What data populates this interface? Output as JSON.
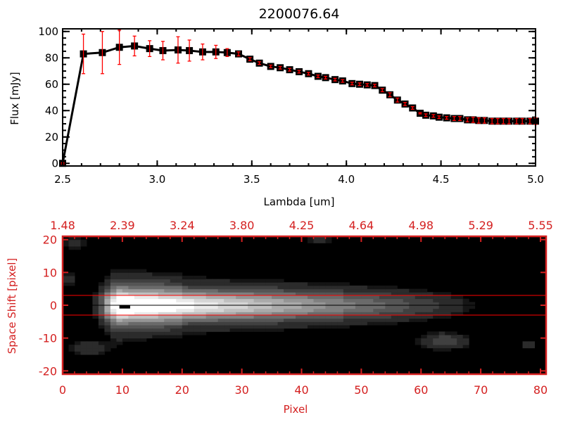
{
  "chart_data": [
    {
      "type": "line",
      "title": "2200076.64",
      "xlabel": "Lambda [um]",
      "ylabel": "Flux [mJy]",
      "xlim": [
        2.5,
        5.0
      ],
      "ylim": [
        -2,
        102
      ],
      "xticks": [
        "2.5",
        "3.0",
        "3.5",
        "4.0",
        "4.5",
        "5.0"
      ],
      "yticks": [
        "0",
        "20",
        "40",
        "60",
        "80",
        "100"
      ],
      "line_color": "#000000",
      "errorbar_color": "#ff0000",
      "x": [
        2.5,
        2.61,
        2.71,
        2.8,
        2.88,
        2.96,
        3.03,
        3.11,
        3.17,
        3.24,
        3.31,
        3.37,
        3.43,
        3.49,
        3.54,
        3.6,
        3.65,
        3.7,
        3.75,
        3.8,
        3.85,
        3.89,
        3.94,
        3.98,
        4.03,
        4.07,
        4.11,
        4.15,
        4.19,
        4.23,
        4.27,
        4.31,
        4.35,
        4.39,
        4.42,
        4.46,
        4.49,
        4.53,
        4.57,
        4.6,
        4.64,
        4.67,
        4.7,
        4.73,
        4.77,
        4.8,
        4.83,
        4.86,
        4.9,
        4.93,
        4.97,
        5.0
      ],
      "y": [
        0,
        83,
        84,
        88,
        89,
        87,
        85.5,
        86,
        85.5,
        84.5,
        84.5,
        84,
        83,
        79,
        76,
        73.5,
        72.5,
        71,
        69.5,
        68,
        66,
        65,
        63.5,
        62.5,
        60.5,
        60,
        59.5,
        59,
        55.5,
        52,
        48,
        45,
        42,
        38,
        36.5,
        36,
        35,
        34.5,
        34,
        34,
        33,
        33,
        32.5,
        32.5,
        32,
        32,
        32,
        32,
        32,
        32,
        32,
        32
      ],
      "yerr": [
        0.5,
        15,
        16,
        13,
        7.5,
        6,
        7,
        10,
        8,
        6,
        5,
        3,
        1.5,
        1.2,
        1,
        1,
        1,
        1,
        1,
        1,
        1,
        1,
        1,
        1,
        1,
        1,
        1,
        1,
        1.2,
        1.5,
        1.5,
        1.2,
        1,
        0.5,
        1,
        1,
        1,
        1,
        1.5,
        1.5,
        1.5,
        2,
        2,
        2,
        2,
        2,
        2,
        2,
        2,
        2,
        2,
        2.5
      ]
    },
    {
      "type": "heatmap",
      "xlabel": "Pixel",
      "ylabel": "Space Shift [pixel]",
      "xlim": [
        0,
        80
      ],
      "ylim": [
        -21,
        21
      ],
      "xticks": [
        "0",
        "10",
        "20",
        "30",
        "40",
        "50",
        "60",
        "70",
        "80"
      ],
      "yticks": [
        "20",
        "10",
        "0",
        "-10",
        "-20"
      ],
      "top_axis_label_values": [
        "1.48",
        "2.39",
        "3.24",
        "3.80",
        "4.25",
        "4.64",
        "4.98",
        "5.29",
        "5.55"
      ],
      "colormap": "grayscale",
      "axis_color": "#d42020",
      "aperture_lines": [
        3,
        -3
      ],
      "aperture_line_color": "#ff0000",
      "center_line": 0,
      "peak_pixel": 10
    }
  ]
}
